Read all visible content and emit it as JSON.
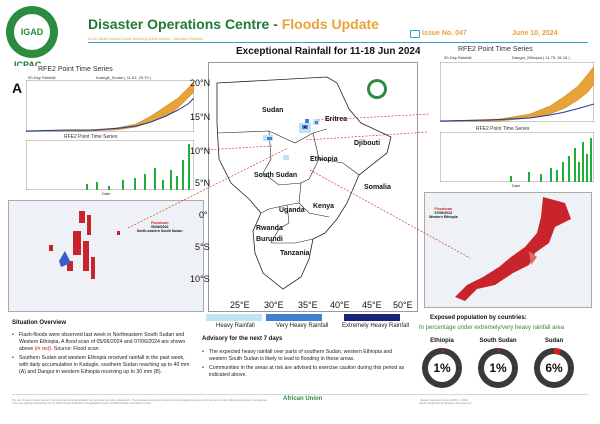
{
  "header": {
    "org_logo_text": "IGAD",
    "org_name": "ICPAC",
    "title_main": "Disaster Operations Centre - ",
    "title_accent": "Floods Update",
    "subtitle": "IGAD Multi-Hazard Early Warning Early Action - Situation Bulletin",
    "issue": "Issue No. 047",
    "date": "June 10, 2024"
  },
  "map": {
    "title": "Exceptional Rainfall for 11-18 Jun 2024",
    "lat_labels": [
      "20°N",
      "15°N",
      "10°N",
      "5°N",
      "0°",
      "5°S",
      "10°S"
    ],
    "lon_labels": [
      "25°E",
      "30°E",
      "35°E",
      "40°E",
      "45°E",
      "50°E"
    ],
    "countries": [
      "Sudan",
      "Eritrea",
      "Djibouti",
      "Ethiopia",
      "South Sudan",
      "Somalia",
      "Uganda",
      "Kenya",
      "Rwanda",
      "Burundi",
      "Tanzania"
    ],
    "logo_text": "IGAD",
    "legend": [
      {
        "label": "Heavy Rainfall",
        "color": "#bfe3ef"
      },
      {
        "label": "Very Heavy Rainfall",
        "color": "#3f7fd1"
      },
      {
        "label": "Extremely Heavy Rainfall",
        "color": "#16267a"
      }
    ]
  },
  "chart_a": {
    "letter": "A",
    "panel_title": "RFE2  Point Time Series",
    "sub_left": "90-Day Rainfall",
    "sub_right": "Kadugli_Sudan ( 11.01, 29.70 )",
    "ylabel": "Rainfall vs Normal (mm)",
    "daily_title": "RFE2  Point Time Series",
    "daily_ylabel": "Daily Rainfall (mm)",
    "xlabel": "Date"
  },
  "chart_b": {
    "letter": "B",
    "panel_title": "RFE2  Point Time Series",
    "sub_left": "90-Day Rainfall",
    "sub_right": "Dangur_Ethiopia ( 11.75, 36.18 )",
    "ylabel": "Rainfall vs Normal (mm)",
    "daily_title": "RFE2  Point Time Series",
    "daily_ylabel": "Daily Rainfall (mm)",
    "xlabel": "Date"
  },
  "flood_left": {
    "line1": "Floodscan",
    "line2": "05/06/2024",
    "line3": "North-eastern South Sudan"
  },
  "flood_right": {
    "line1": "Floodscan",
    "line2": "07/06/2024",
    "line3": "Western Ethiopia"
  },
  "situation": {
    "title": "Situation Overview",
    "bullet1_a": "Flash-floods were observed last week in Northeastern South Sudan and Western Ethiopia, A flood scan of 05/06/2024 and 07/06/2024 are shown above ",
    "bullet1_red": "(in red)",
    "bullet1_b": ". Source: Flood scan",
    "bullet2": "Southern Sudan and western Ethiopia received rainfall in the past week, with daily accumulation in Kadugle, southern Sudan reaching up to 40 mm (A) and Dangur in western Ethiopia receiving up to 30 mm (B)."
  },
  "advisory": {
    "title": "Advisory for the next 7 days",
    "bullet1": "The expected heavy rainfall over parts of southern Sudan, western Ethiopia and western South Sudan is likely to lead to flooding in these areas.",
    "bullet2": "Communities in the areas at risk are advised to exercise caution during this period as indicated above."
  },
  "exposure": {
    "title": "Exposed population by countries:",
    "subtitle": "In percentage under extremely/very heavy rainfall area",
    "countries": [
      {
        "name": "Ethiopia",
        "pct": "1%",
        "value": 1
      },
      {
        "name": "South Sudan",
        "pct": "1%",
        "value": 1
      },
      {
        "name": "Sudan",
        "pct": "6%",
        "value": 6
      }
    ],
    "ring_color": "#3a3a3a",
    "accent_color": "#d01e1e"
  },
  "footer": {
    "left_line1": "The use of trade or brand names in this document is for identification only and does not imply endorsement. The boundaries and names shown and the designations used on this map do not imply official endorsement or acceptance.",
    "left_line2": "This is an ongoing interpretation by the IGAD Climate Prediction and Applications Centre (ICPAC) Disaster Operations Centre.",
    "au_text": "African Union",
    "right_line1": "Disaster Operations Centre (DOC) - ICPAC",
    "right_line2": "Email: doc@icpac.net  Website: www.icpac.net"
  }
}
